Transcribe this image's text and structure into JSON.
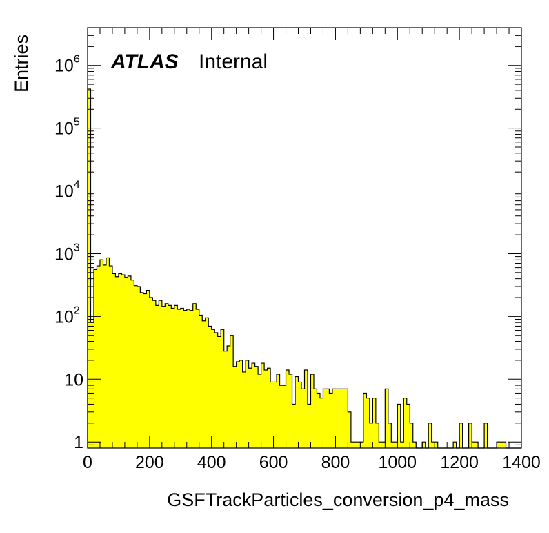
{
  "chart_data": {
    "type": "bar",
    "title": "",
    "xlabel": "GSFTrackParticles_conversion_p4_mass",
    "ylabel": "Entries",
    "xlim": [
      0,
      1400
    ],
    "ylim": [
      0.8,
      4000000
    ],
    "yscale": "log",
    "grid": false,
    "bin_width": 10,
    "fill_color": "#ffff00",
    "line_color": "#000000",
    "annotations": {
      "experiment": "ATLAS",
      "status": "Internal"
    },
    "x_tick_labels": [
      "0",
      "200",
      "400",
      "600",
      "800",
      "1000",
      "1200",
      "1400"
    ],
    "y_tick_labels": [
      {
        "base": "1",
        "exp": ""
      },
      {
        "base": "10",
        "exp": ""
      },
      {
        "base": "10",
        "exp": "2"
      },
      {
        "base": "10",
        "exp": "3"
      },
      {
        "base": "10",
        "exp": "4"
      },
      {
        "base": "10",
        "exp": "5"
      },
      {
        "base": "10",
        "exp": "6"
      }
    ],
    "bins": [
      {
        "x": 0,
        "y": 420000
      },
      {
        "x": 10,
        "y": 80
      },
      {
        "x": 20,
        "y": 560
      },
      {
        "x": 30,
        "y": 640
      },
      {
        "x": 40,
        "y": 800
      },
      {
        "x": 50,
        "y": 660
      },
      {
        "x": 60,
        "y": 860
      },
      {
        "x": 70,
        "y": 640
      },
      {
        "x": 80,
        "y": 480
      },
      {
        "x": 90,
        "y": 430
      },
      {
        "x": 100,
        "y": 480
      },
      {
        "x": 110,
        "y": 460
      },
      {
        "x": 120,
        "y": 420
      },
      {
        "x": 130,
        "y": 440
      },
      {
        "x": 140,
        "y": 380
      },
      {
        "x": 150,
        "y": 310
      },
      {
        "x": 160,
        "y": 300
      },
      {
        "x": 170,
        "y": 240
      },
      {
        "x": 180,
        "y": 230
      },
      {
        "x": 190,
        "y": 260
      },
      {
        "x": 200,
        "y": 200
      },
      {
        "x": 210,
        "y": 180
      },
      {
        "x": 220,
        "y": 150
      },
      {
        "x": 230,
        "y": 180
      },
      {
        "x": 240,
        "y": 145
      },
      {
        "x": 250,
        "y": 160
      },
      {
        "x": 260,
        "y": 150
      },
      {
        "x": 270,
        "y": 135
      },
      {
        "x": 280,
        "y": 150
      },
      {
        "x": 290,
        "y": 130
      },
      {
        "x": 300,
        "y": 135
      },
      {
        "x": 310,
        "y": 125
      },
      {
        "x": 320,
        "y": 130
      },
      {
        "x": 330,
        "y": 125
      },
      {
        "x": 340,
        "y": 160
      },
      {
        "x": 350,
        "y": 130
      },
      {
        "x": 360,
        "y": 105
      },
      {
        "x": 370,
        "y": 85
      },
      {
        "x": 380,
        "y": 95
      },
      {
        "x": 390,
        "y": 70
      },
      {
        "x": 400,
        "y": 62
      },
      {
        "x": 410,
        "y": 55
      },
      {
        "x": 420,
        "y": 48
      },
      {
        "x": 430,
        "y": 62
      },
      {
        "x": 440,
        "y": 28
      },
      {
        "x": 450,
        "y": 34
      },
      {
        "x": 460,
        "y": 50
      },
      {
        "x": 470,
        "y": 16
      },
      {
        "x": 480,
        "y": 19
      },
      {
        "x": 490,
        "y": 20
      },
      {
        "x": 500,
        "y": 13
      },
      {
        "x": 510,
        "y": 20
      },
      {
        "x": 520,
        "y": 15
      },
      {
        "x": 530,
        "y": 18
      },
      {
        "x": 540,
        "y": 16
      },
      {
        "x": 550,
        "y": 12
      },
      {
        "x": 560,
        "y": 18
      },
      {
        "x": 570,
        "y": 14
      },
      {
        "x": 580,
        "y": 15
      },
      {
        "x": 590,
        "y": 9
      },
      {
        "x": 600,
        "y": 9
      },
      {
        "x": 610,
        "y": 12
      },
      {
        "x": 620,
        "y": 8
      },
      {
        "x": 630,
        "y": 8
      },
      {
        "x": 640,
        "y": 14
      },
      {
        "x": 650,
        "y": 12
      },
      {
        "x": 660,
        "y": 4
      },
      {
        "x": 670,
        "y": 11
      },
      {
        "x": 680,
        "y": 9
      },
      {
        "x": 690,
        "y": 7
      },
      {
        "x": 700,
        "y": 14
      },
      {
        "x": 710,
        "y": 4
      },
      {
        "x": 720,
        "y": 12
      },
      {
        "x": 730,
        "y": 7
      },
      {
        "x": 740,
        "y": 6
      },
      {
        "x": 750,
        "y": 5
      },
      {
        "x": 760,
        "y": 7
      },
      {
        "x": 770,
        "y": 7
      },
      {
        "x": 780,
        "y": 6
      },
      {
        "x": 790,
        "y": 7
      },
      {
        "x": 800,
        "y": 7
      },
      {
        "x": 810,
        "y": 7
      },
      {
        "x": 820,
        "y": 7
      },
      {
        "x": 830,
        "y": 7
      },
      {
        "x": 840,
        "y": 3
      },
      {
        "x": 850,
        "y": 1
      },
      {
        "x": 860,
        "y": 1
      },
      {
        "x": 870,
        "y": 1
      },
      {
        "x": 880,
        "y": 1
      },
      {
        "x": 890,
        "y": 6
      },
      {
        "x": 900,
        "y": 5
      },
      {
        "x": 910,
        "y": 2
      },
      {
        "x": 920,
        "y": 5
      },
      {
        "x": 930,
        "y": 2
      },
      {
        "x": 940,
        "y": 1
      },
      {
        "x": 950,
        "y": 1
      },
      {
        "x": 960,
        "y": 7
      },
      {
        "x": 970,
        "y": 2
      },
      {
        "x": 980,
        "y": 1
      },
      {
        "x": 990,
        "y": 1
      },
      {
        "x": 1000,
        "y": 4
      },
      {
        "x": 1010,
        "y": 1
      },
      {
        "x": 1020,
        "y": 5
      },
      {
        "x": 1030,
        "y": 4
      },
      {
        "x": 1040,
        "y": 2
      },
      {
        "x": 1050,
        "y": 1
      },
      {
        "x": 1060,
        "y": 0
      },
      {
        "x": 1070,
        "y": 0
      },
      {
        "x": 1080,
        "y": 1
      },
      {
        "x": 1090,
        "y": 0
      },
      {
        "x": 1100,
        "y": 2
      },
      {
        "x": 1110,
        "y": 1
      },
      {
        "x": 1120,
        "y": 1
      },
      {
        "x": 1130,
        "y": 0
      },
      {
        "x": 1140,
        "y": 0
      },
      {
        "x": 1150,
        "y": 0
      },
      {
        "x": 1160,
        "y": 0
      },
      {
        "x": 1170,
        "y": 0
      },
      {
        "x": 1180,
        "y": 1
      },
      {
        "x": 1190,
        "y": 0
      },
      {
        "x": 1200,
        "y": 2
      },
      {
        "x": 1210,
        "y": 0
      },
      {
        "x": 1220,
        "y": 0
      },
      {
        "x": 1230,
        "y": 2
      },
      {
        "x": 1240,
        "y": 1
      },
      {
        "x": 1250,
        "y": 1
      },
      {
        "x": 1260,
        "y": 0
      },
      {
        "x": 1270,
        "y": 0
      },
      {
        "x": 1280,
        "y": 2
      },
      {
        "x": 1290,
        "y": 0
      },
      {
        "x": 1300,
        "y": 0
      },
      {
        "x": 1310,
        "y": 0
      },
      {
        "x": 1320,
        "y": 1
      },
      {
        "x": 1330,
        "y": 1
      },
      {
        "x": 1340,
        "y": 1
      },
      {
        "x": 1350,
        "y": 0
      },
      {
        "x": 1360,
        "y": 0
      },
      {
        "x": 1370,
        "y": 0
      },
      {
        "x": 1380,
        "y": 0
      },
      {
        "x": 1390,
        "y": 0
      }
    ]
  }
}
